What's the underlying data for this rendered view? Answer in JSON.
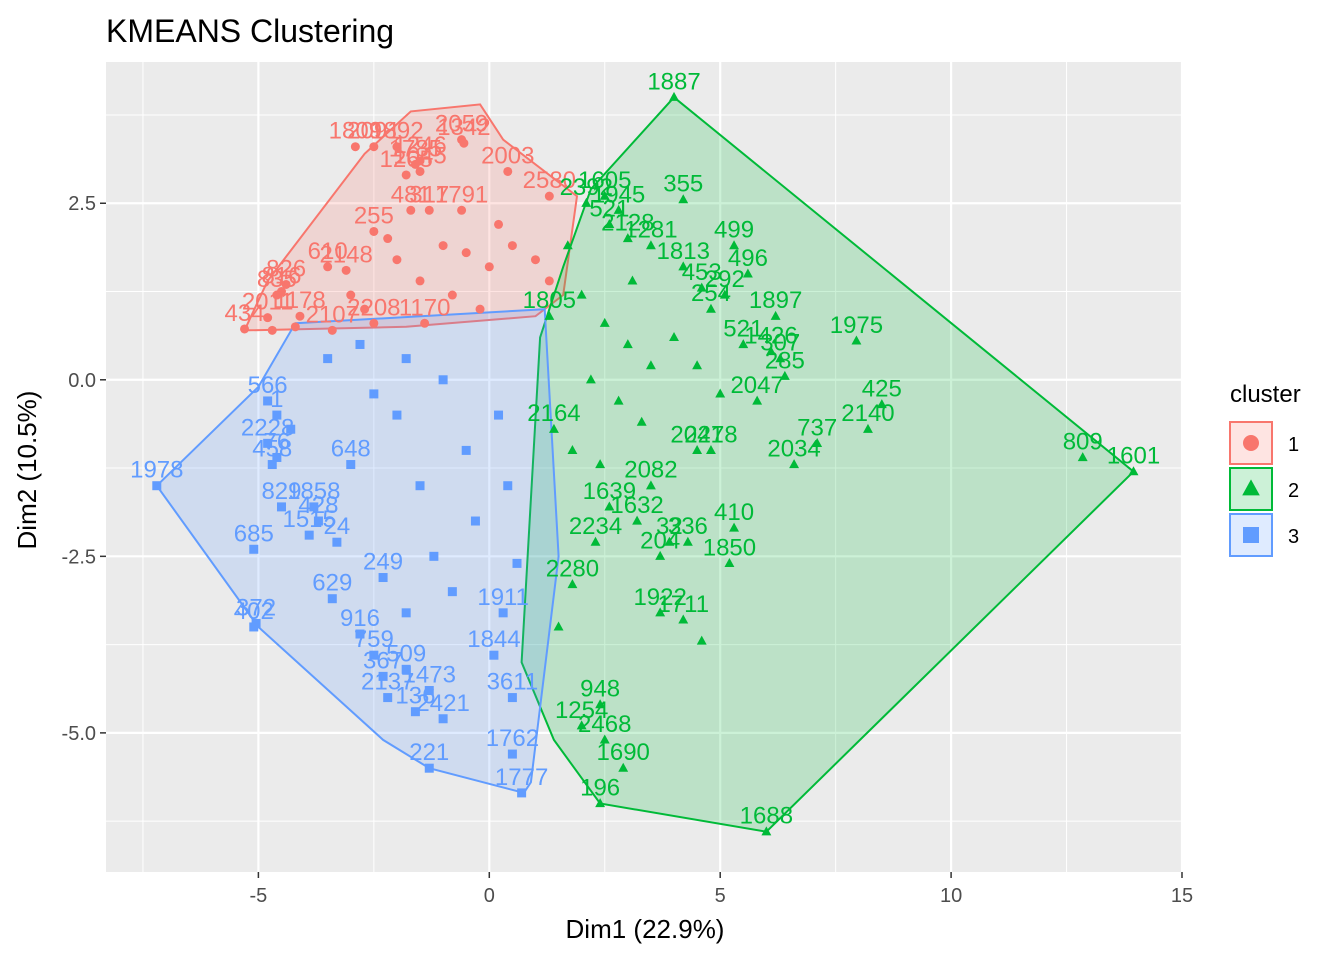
{
  "chart_data": {
    "type": "scatter",
    "title": "KMEANS Clustering",
    "xlabel": "Dim1 (22.9%)",
    "ylabel": "Dim2 (10.5%)",
    "xlim": [
      -8.3,
      15
    ],
    "ylim": [
      -6.97,
      4.5
    ],
    "x_ticks": [
      -5,
      0,
      5,
      10,
      15
    ],
    "x_tick_labels": [
      "-5",
      "0",
      "5",
      "10",
      "15"
    ],
    "y_ticks": [
      2.5,
      0,
      -2.5,
      -5
    ],
    "y_tick_labels": [
      "2.5",
      "0.0",
      "-2.5",
      "-5.0"
    ],
    "grid": true,
    "legend": {
      "title": "cluster",
      "placement": "right",
      "entries": [
        "1",
        "2",
        "3"
      ]
    },
    "colors": {
      "1": "#F8766D",
      "2": "#00BA38",
      "3": "#619CFF",
      "panel": "#EBEBEB",
      "grid": "#FFFFFF"
    },
    "series": [
      {
        "name": "1",
        "shape": "circle",
        "hull": [
          [
            -5.3,
            0.7
          ],
          [
            -4.8,
            1.4
          ],
          [
            -2.7,
            3.2
          ],
          [
            -1.7,
            3.8
          ],
          [
            -0.2,
            3.9
          ],
          [
            0.3,
            3.4
          ],
          [
            1.9,
            2.6
          ],
          [
            1.6,
            1.2
          ],
          [
            1.0,
            0.9
          ],
          [
            -1.8,
            0.75
          ]
        ],
        "points": [
          {
            "x": -0.55,
            "y": 3.35,
            "label": "1342"
          },
          {
            "x": -0.6,
            "y": 3.4,
            "label": "2059"
          },
          {
            "x": -2.5,
            "y": 3.3,
            "label": "2091"
          },
          {
            "x": -2.9,
            "y": 3.3,
            "label": "1809"
          },
          {
            "x": -2.0,
            "y": 3.3,
            "label": "1892"
          },
          {
            "x": -1.6,
            "y": 3.05,
            "label": "1785"
          },
          {
            "x": -1.8,
            "y": 2.9,
            "label": "1265"
          },
          {
            "x": -1.5,
            "y": 3.1,
            "label": "1246"
          },
          {
            "x": -1.5,
            "y": 2.95,
            "label": "1045"
          },
          {
            "x": 0.4,
            "y": 2.95,
            "label": "2003"
          },
          {
            "x": 1.3,
            "y": 2.6,
            "label": "2580"
          },
          {
            "x": -1.7,
            "y": 2.4,
            "label": "481"
          },
          {
            "x": -1.3,
            "y": 2.4,
            "label": "317"
          },
          {
            "x": -0.6,
            "y": 2.4,
            "label": "1791"
          },
          {
            "x": -2.5,
            "y": 2.1,
            "label": "255"
          },
          {
            "x": -3.1,
            "y": 1.55,
            "label": "2148"
          },
          {
            "x": -3.5,
            "y": 1.6,
            "label": "610"
          },
          {
            "x": -4.4,
            "y": 1.35,
            "label": "826"
          },
          {
            "x": -4.5,
            "y": 1.25,
            "label": "816"
          },
          {
            "x": -4.6,
            "y": 1.2,
            "label": "835"
          },
          {
            "x": -5.3,
            "y": 0.72,
            "label": "434"
          },
          {
            "x": -4.8,
            "y": 0.88,
            "label": "2011"
          },
          {
            "x": -4.1,
            "y": 0.9,
            "label": "1178"
          },
          {
            "x": -3.4,
            "y": 0.7,
            "label": "2107"
          },
          {
            "x": -2.5,
            "y": 0.8,
            "label": "2208"
          },
          {
            "x": -1.4,
            "y": 0.8,
            "label": "1170"
          },
          {
            "x": -1.0,
            "y": 1.9
          },
          {
            "x": -0.5,
            "y": 1.8
          },
          {
            "x": 0.0,
            "y": 1.6
          },
          {
            "x": -2.0,
            "y": 1.7
          },
          {
            "x": -1.5,
            "y": 1.4
          },
          {
            "x": 0.5,
            "y": 1.9
          },
          {
            "x": 1.0,
            "y": 1.7
          },
          {
            "x": -3.0,
            "y": 1.2
          },
          {
            "x": -2.2,
            "y": 2.0
          },
          {
            "x": 0.2,
            "y": 2.2
          },
          {
            "x": -0.8,
            "y": 1.2
          },
          {
            "x": -4.7,
            "y": 0.7
          },
          {
            "x": -4.2,
            "y": 0.75
          },
          {
            "x": -2.7,
            "y": 1.0
          },
          {
            "x": -0.2,
            "y": 1.0
          },
          {
            "x": 1.3,
            "y": 1.4
          }
        ]
      },
      {
        "name": "2",
        "shape": "triangle",
        "hull": [
          [
            4.0,
            4.0
          ],
          [
            13.95,
            -1.3
          ],
          [
            6.0,
            -6.4
          ],
          [
            2.4,
            -6.0
          ],
          [
            1.4,
            -5.1
          ],
          [
            0.7,
            -4.0
          ],
          [
            1.1,
            0.6
          ],
          [
            1.6,
            1.6
          ],
          [
            2.2,
            2.7
          ]
        ],
        "points": [
          {
            "x": 4.0,
            "y": 4.0,
            "label": "1887"
          },
          {
            "x": 4.2,
            "y": 2.55,
            "label": "355"
          },
          {
            "x": 2.5,
            "y": 2.6,
            "label": "1605"
          },
          {
            "x": 2.8,
            "y": 2.4,
            "label": "1945"
          },
          {
            "x": 2.1,
            "y": 2.5,
            "label": "2392"
          },
          {
            "x": 2.6,
            "y": 2.2,
            "label": "521"
          },
          {
            "x": 3.0,
            "y": 2.0,
            "label": "2128"
          },
          {
            "x": 3.5,
            "y": 1.9,
            "label": "1281"
          },
          {
            "x": 5.3,
            "y": 1.9,
            "label": "499"
          },
          {
            "x": 5.6,
            "y": 1.5,
            "label": "496"
          },
          {
            "x": 4.2,
            "y": 1.6,
            "label": "1813"
          },
          {
            "x": 4.6,
            "y": 1.3,
            "label": "453"
          },
          {
            "x": 5.1,
            "y": 1.2,
            "label": "292"
          },
          {
            "x": 4.8,
            "y": 1.0,
            "label": "254"
          },
          {
            "x": 6.2,
            "y": 0.9,
            "label": "1897"
          },
          {
            "x": 7.95,
            "y": 0.55,
            "label": "1975"
          },
          {
            "x": 6.1,
            "y": 0.4,
            "label": "1426"
          },
          {
            "x": 5.5,
            "y": 0.5,
            "label": "521"
          },
          {
            "x": 6.3,
            "y": 0.3,
            "label": "307"
          },
          {
            "x": 6.4,
            "y": 0.05,
            "label": "285"
          },
          {
            "x": 8.5,
            "y": -0.35,
            "label": "425"
          },
          {
            "x": 8.2,
            "y": -0.7,
            "label": "2140"
          },
          {
            "x": 5.8,
            "y": -0.3,
            "label": "2047"
          },
          {
            "x": 7.1,
            "y": -0.9,
            "label": "737"
          },
          {
            "x": 6.6,
            "y": -1.2,
            "label": "2034"
          },
          {
            "x": 4.8,
            "y": -1.0,
            "label": "2278"
          },
          {
            "x": 4.5,
            "y": -1.0,
            "label": "2041"
          },
          {
            "x": 12.85,
            "y": -1.1,
            "label": "809"
          },
          {
            "x": 13.95,
            "y": -1.3,
            "label": "1601"
          },
          {
            "x": 5.3,
            "y": -2.1,
            "label": "410"
          },
          {
            "x": 4.3,
            "y": -2.3,
            "label": "336"
          },
          {
            "x": 3.9,
            "y": -2.3,
            "label": "32"
          },
          {
            "x": 5.2,
            "y": -2.6,
            "label": "1850"
          },
          {
            "x": 3.7,
            "y": -2.5,
            "label": "204"
          },
          {
            "x": 3.2,
            "y": -2.0,
            "label": "1632"
          },
          {
            "x": 2.6,
            "y": -1.8,
            "label": "1639"
          },
          {
            "x": 3.5,
            "y": -1.5,
            "label": "2082"
          },
          {
            "x": 2.3,
            "y": -2.3,
            "label": "2234"
          },
          {
            "x": 1.8,
            "y": -2.9,
            "label": "2280"
          },
          {
            "x": 3.7,
            "y": -3.3,
            "label": "1922"
          },
          {
            "x": 4.2,
            "y": -3.4,
            "label": "1711"
          },
          {
            "x": 2.4,
            "y": -4.6,
            "label": "948"
          },
          {
            "x": 2.0,
            "y": -4.9,
            "label": "1254"
          },
          {
            "x": 2.5,
            "y": -5.1,
            "label": "2468"
          },
          {
            "x": 2.9,
            "y": -5.5,
            "label": "1690"
          },
          {
            "x": 2.4,
            "y": -6.0,
            "label": "196"
          },
          {
            "x": 6.0,
            "y": -6.4,
            "label": "1688"
          },
          {
            "x": 1.4,
            "y": -0.7,
            "label": "2164"
          },
          {
            "x": 1.3,
            "y": 0.9,
            "label": "1805"
          },
          {
            "x": 2.0,
            "y": 1.2
          },
          {
            "x": 2.5,
            "y": 0.8
          },
          {
            "x": 3.0,
            "y": 0.5
          },
          {
            "x": 3.5,
            "y": 0.2
          },
          {
            "x": 2.2,
            "y": 0.0
          },
          {
            "x": 2.8,
            "y": -0.3
          },
          {
            "x": 3.3,
            "y": -0.6
          },
          {
            "x": 4.0,
            "y": 0.6
          },
          {
            "x": 4.5,
            "y": 0.2
          },
          {
            "x": 5.0,
            "y": -0.2
          },
          {
            "x": 1.8,
            "y": -1.0
          },
          {
            "x": 2.4,
            "y": -1.2
          },
          {
            "x": 3.1,
            "y": 1.4
          },
          {
            "x": 4.6,
            "y": -3.7
          },
          {
            "x": 1.5,
            "y": -3.5
          },
          {
            "x": 1.7,
            "y": 1.9
          }
        ]
      },
      {
        "name": "3",
        "shape": "square",
        "hull": [
          [
            -4.2,
            0.8
          ],
          [
            1.2,
            1.0
          ],
          [
            1.5,
            -2.5
          ],
          [
            0.9,
            -5.7
          ],
          [
            0.75,
            -5.85
          ],
          [
            -1.3,
            -5.5
          ],
          [
            -2.3,
            -5.1
          ],
          [
            -5.0,
            -3.5
          ],
          [
            -7.2,
            -1.5
          ],
          [
            -5.0,
            -0.1
          ]
        ],
        "points": [
          {
            "x": -7.2,
            "y": -1.5,
            "label": "1978"
          },
          {
            "x": -4.8,
            "y": -0.3,
            "label": "566"
          },
          {
            "x": -4.6,
            "y": -0.5,
            "label": "1"
          },
          {
            "x": -4.8,
            "y": -0.9,
            "label": "2228"
          },
          {
            "x": -4.6,
            "y": -1.1,
            "label": "76"
          },
          {
            "x": -4.7,
            "y": -1.2,
            "label": "458"
          },
          {
            "x": -4.5,
            "y": -1.8,
            "label": "829"
          },
          {
            "x": -3.8,
            "y": -1.8,
            "label": "1858"
          },
          {
            "x": -3.7,
            "y": -2.0,
            "label": "428"
          },
          {
            "x": -3.9,
            "y": -2.2,
            "label": "1515"
          },
          {
            "x": -3.3,
            "y": -2.3,
            "label": "24"
          },
          {
            "x": -5.1,
            "y": -2.4,
            "label": "685"
          },
          {
            "x": -3.4,
            "y": -3.1,
            "label": "629"
          },
          {
            "x": -2.3,
            "y": -2.8,
            "label": "249"
          },
          {
            "x": -5.1,
            "y": -3.5,
            "label": "402"
          },
          {
            "x": -5.05,
            "y": -3.45,
            "label": "372"
          },
          {
            "x": -2.8,
            "y": -3.6,
            "label": "916"
          },
          {
            "x": -2.5,
            "y": -3.9,
            "label": "759"
          },
          {
            "x": -2.3,
            "y": -4.2,
            "label": "367"
          },
          {
            "x": -1.8,
            "y": -4.1,
            "label": "509"
          },
          {
            "x": -2.2,
            "y": -4.5,
            "label": "2137"
          },
          {
            "x": -1.3,
            "y": -4.4,
            "label": "1473"
          },
          {
            "x": -1.6,
            "y": -4.7,
            "label": "136"
          },
          {
            "x": -1.0,
            "y": -4.8,
            "label": "2421"
          },
          {
            "x": -1.3,
            "y": -5.5,
            "label": "221"
          },
          {
            "x": 0.7,
            "y": -5.85,
            "label": "1777"
          },
          {
            "x": 0.5,
            "y": -5.3,
            "label": "1762"
          },
          {
            "x": 0.5,
            "y": -4.5,
            "label": "3611"
          },
          {
            "x": 0.1,
            "y": -3.9,
            "label": "1844"
          },
          {
            "x": 0.3,
            "y": -3.3,
            "label": "1911"
          },
          {
            "x": -3.0,
            "y": -1.2,
            "label": "648"
          },
          {
            "x": -1.0,
            "y": 0.0
          },
          {
            "x": -2.0,
            "y": -0.5
          },
          {
            "x": -0.5,
            "y": -1.0
          },
          {
            "x": -1.5,
            "y": -1.5
          },
          {
            "x": -2.5,
            "y": -0.2
          },
          {
            "x": -0.3,
            "y": -2.0
          },
          {
            "x": -1.2,
            "y": -2.5
          },
          {
            "x": 0.2,
            "y": -0.5
          },
          {
            "x": -3.5,
            "y": 0.3
          },
          {
            "x": -2.8,
            "y": 0.5
          },
          {
            "x": -1.8,
            "y": 0.3
          },
          {
            "x": 0.4,
            "y": -1.5
          },
          {
            "x": -0.8,
            "y": -3.0
          },
          {
            "x": -1.8,
            "y": -3.3
          },
          {
            "x": 0.6,
            "y": -2.6
          },
          {
            "x": -4.3,
            "y": -0.7
          }
        ]
      }
    ]
  }
}
